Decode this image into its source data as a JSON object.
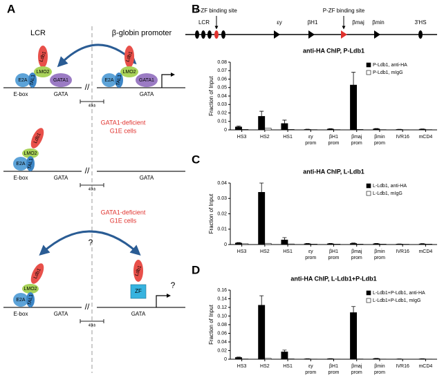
{
  "panel_labels": [
    "A",
    "B",
    "C",
    "D"
  ],
  "diagram": {
    "lcr": "LCR",
    "promoter": "β-globin promoter",
    "rows": [
      {
        "left": [
          "Ldb1",
          "LMO2",
          "E2A",
          "TAL1",
          "GATA1"
        ],
        "sites": [
          "E-box",
          "GATA"
        ],
        "right": [
          "Ldb1",
          "LMO2",
          "E2A",
          "TAL1",
          "GATA1"
        ],
        "right_site": "GATA",
        "scale": "40kb"
      },
      {
        "note": [
          "GATA1-deficient",
          "G1E cells"
        ],
        "left": [
          "Ldb1",
          "LMO2",
          "E2A",
          "TAL1"
        ],
        "sites": [
          "E-box",
          "GATA"
        ],
        "right_site": "GATA",
        "scale": "40kb"
      },
      {
        "note": [
          "GATA1-deficient",
          "G1E cells"
        ],
        "question": "?",
        "left": [
          "Ldb1",
          "LMO2",
          "E2A",
          "TAL1"
        ],
        "sites": [
          "E-box",
          "GATA"
        ],
        "right": [
          "Ldb1",
          "ZF"
        ],
        "right_question": "?",
        "right_site": "GATA",
        "scale": "40kb"
      }
    ]
  },
  "gene_map": {
    "binding_sites": [
      "L-ZF binding site",
      "P-ZF binding site"
    ],
    "labels": [
      "LCR",
      "εy",
      "βH1",
      "βmaj",
      "βmin",
      "3'HS"
    ]
  },
  "chart_data": [
    {
      "type": "bar",
      "title": "anti-HA ChIP, P-Ldb1",
      "y_label": "Fraction of Input",
      "categories": [
        "HS3",
        "HS2",
        "HS1",
        "εy\nprom",
        "βH1\nprom",
        "βmaj\nprom",
        "βmin\nprom",
        "IVR16",
        "mCD4"
      ],
      "series": [
        {
          "name": "P-Ldb1, anti-HA",
          "color": "#000000",
          "values": [
            0.0035,
            0.016,
            0.0075,
            0.0005,
            0.001,
            0.053,
            0.0012,
            0.0005,
            0.0008
          ],
          "errors": [
            0.001,
            0.006,
            0.004,
            0.0003,
            0.0004,
            0.015,
            0.0004,
            0.0002,
            0.0003
          ]
        },
        {
          "name": "P-Ldb1, mIgG",
          "color": "#ffffff",
          "values": [
            0.0005,
            0.002,
            0.0005,
            0.0003,
            0.0003,
            0.0005,
            0.0003,
            0.0002,
            0.0003
          ]
        }
      ],
      "ylim": [
        0,
        0.08
      ],
      "yticks": [
        0,
        0.01,
        0.02,
        0.03,
        0.04,
        0.05,
        0.06,
        0.07,
        0.08
      ],
      "legend": "upper right"
    },
    {
      "type": "bar",
      "title": "anti-HA ChIP, L-Ldb1",
      "y_label": "Fraction of Input",
      "categories": [
        "HS3",
        "HS2",
        "HS1",
        "εy\nprom",
        "βH1\nprom",
        "βmaj\nprom",
        "βmin\nprom",
        "IVR16",
        "mCD4"
      ],
      "series": [
        {
          "name": "L-Ldb1, anti-HA",
          "color": "#000000",
          "values": [
            0.001,
            0.034,
            0.003,
            0.0005,
            0.0005,
            0.0007,
            0.0005,
            0.0003,
            0.0004
          ],
          "errors": [
            0.0003,
            0.006,
            0.0015,
            0.0002,
            0.0002,
            0.0003,
            0.0002,
            0.0001,
            0.0002
          ]
        },
        {
          "name": "L-Ldb1, mIgG",
          "color": "#ffffff",
          "values": [
            0.0005,
            0.0008,
            0.0004,
            0.0003,
            0.0003,
            0.0003,
            0.0003,
            0.0002,
            0.0003
          ]
        }
      ],
      "ylim": [
        0,
        0.04
      ],
      "yticks": [
        0,
        0.01,
        0.02,
        0.03,
        0.04
      ],
      "legend": "upper right"
    },
    {
      "type": "bar",
      "title": "anti-HA ChIP, L-Ldb1+P-Ldb1",
      "y_label": "Fraction of Input",
      "categories": [
        "HS3",
        "HS2",
        "HS1",
        "εy\nprom",
        "βH1\nprom",
        "βmaj\nprom",
        "βmin\nprom",
        "IVR16",
        "mCD4"
      ],
      "series": [
        {
          "name": "L-Ldb1+P-Ldb1, anti-HA",
          "color": "#000000",
          "values": [
            0.004,
            0.125,
            0.017,
            0.0008,
            0.001,
            0.108,
            0.0015,
            0.0005,
            0.0008
          ],
          "errors": [
            0.001,
            0.022,
            0.004,
            0.0003,
            0.0003,
            0.014,
            0.0005,
            0.0002,
            0.0003
          ]
        },
        {
          "name": "L-Ldb1+P-Ldb1, mIgG",
          "color": "#ffffff",
          "values": [
            0.0006,
            0.002,
            0.0008,
            0.0004,
            0.0004,
            0.0006,
            0.0004,
            0.0003,
            0.0004
          ]
        }
      ],
      "ylim": [
        0,
        0.16
      ],
      "yticks": [
        0,
        0.02,
        0.04,
        0.06,
        0.08,
        {
          "value": 0.1,
          "label": "0.10"
        },
        0.12,
        0.14,
        0.16
      ],
      "legend": "upper right"
    }
  ]
}
